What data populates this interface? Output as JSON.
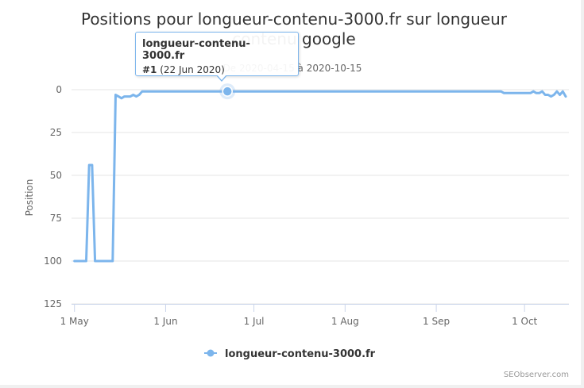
{
  "chart_data": {
    "type": "line",
    "title": "Positions pour longueur-contenu-3000.fr sur longueur contenu google",
    "subtitle": "De 2020-04-15 à 2020-10-15",
    "ylabel": "Position",
    "xlabel": "",
    "ylim": [
      0,
      125
    ],
    "y_reversed": true,
    "y_ticks": [
      "0",
      "25",
      "50",
      "75",
      "100",
      "125"
    ],
    "x_range": [
      "2020-04-30",
      "2020-10-15"
    ],
    "x_ticks": [
      {
        "label": "1 May",
        "date": "2020-05-01"
      },
      {
        "label": "1 Jun",
        "date": "2020-06-01"
      },
      {
        "label": "1 Jul",
        "date": "2020-07-01"
      },
      {
        "label": "1 Aug",
        "date": "2020-08-01"
      },
      {
        "label": "1 Sep",
        "date": "2020-09-01"
      },
      {
        "label": "1 Oct",
        "date": "2020-10-01"
      }
    ],
    "grid": true,
    "legend_position": "bottom-center",
    "series_color": "#7cb5ec",
    "series": [
      {
        "name": "longueur-contenu-3000.fr",
        "points": [
          [
            "2020-05-01",
            100
          ],
          [
            "2020-05-05",
            100
          ],
          [
            "2020-05-06",
            44
          ],
          [
            "2020-05-07",
            44
          ],
          [
            "2020-05-08",
            100
          ],
          [
            "2020-05-14",
            100
          ],
          [
            "2020-05-15",
            3
          ],
          [
            "2020-05-16",
            4
          ],
          [
            "2020-05-17",
            5
          ],
          [
            "2020-05-18",
            4
          ],
          [
            "2020-05-20",
            4
          ],
          [
            "2020-05-21",
            3
          ],
          [
            "2020-05-22",
            4
          ],
          [
            "2020-05-23",
            3
          ],
          [
            "2020-05-24",
            1
          ],
          [
            "2020-06-22",
            1
          ],
          [
            "2020-09-23",
            1
          ],
          [
            "2020-09-24",
            2
          ],
          [
            "2020-10-03",
            2
          ],
          [
            "2020-10-04",
            1
          ],
          [
            "2020-10-05",
            2
          ],
          [
            "2020-10-06",
            2
          ],
          [
            "2020-10-07",
            1
          ],
          [
            "2020-10-08",
            3
          ],
          [
            "2020-10-09",
            3
          ],
          [
            "2020-10-10",
            4
          ],
          [
            "2020-10-11",
            3
          ],
          [
            "2020-10-12",
            1
          ],
          [
            "2020-10-13",
            3
          ],
          [
            "2020-10-14",
            1
          ],
          [
            "2020-10-15",
            4
          ]
        ]
      }
    ],
    "highlighted_point": [
      "2020-06-22",
      1
    ]
  },
  "tooltip": {
    "name": "longueur-contenu-3000.fr",
    "rank": "#1",
    "date": "(22 Jun 2020)"
  },
  "legend": {
    "label": "longueur-contenu-3000.fr"
  },
  "credit": "SEObserver.com"
}
